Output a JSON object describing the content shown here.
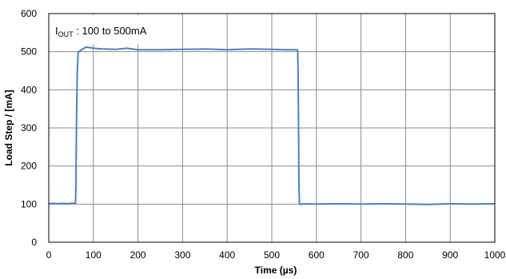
{
  "chart_data": {
    "type": "line",
    "title": "",
    "xlabel": "Time (µs)",
    "ylabel": "Load Step / [mA]",
    "xlim": [
      0,
      1000
    ],
    "ylim": [
      0,
      600
    ],
    "x_ticks": [
      0,
      100,
      200,
      300,
      400,
      500,
      600,
      700,
      800,
      900,
      1000
    ],
    "y_ticks": [
      0,
      100,
      200,
      300,
      400,
      500,
      600
    ],
    "grid": true,
    "legend": "none",
    "annotation": {
      "main": "I",
      "sub": "OUT",
      "rest": " :  100 to 500mA"
    },
    "series": [
      {
        "color": "#4f81bd",
        "x": [
          0,
          10,
          20,
          30,
          40,
          50,
          60,
          61,
          62,
          64,
          66,
          68,
          70,
          75,
          80,
          85,
          90,
          100,
          120,
          150,
          175,
          200,
          250,
          300,
          350,
          400,
          450,
          500,
          530,
          550,
          557,
          558,
          559,
          560,
          561,
          562,
          563,
          565,
          570,
          600,
          650,
          700,
          750,
          800,
          850,
          900,
          950,
          1000
        ],
        "y": [
          101,
          102,
          101,
          102,
          101,
          102,
          102,
          150,
          300,
          450,
          499,
          500,
          502,
          506,
          510,
          512,
          511,
          509,
          507,
          506,
          509,
          505,
          505,
          506,
          507,
          505,
          507,
          506,
          505,
          505,
          505,
          504,
          450,
          300,
          150,
          100,
          100,
          99,
          101,
          100,
          101,
          100,
          101,
          100,
          99,
          101,
          100,
          101
        ]
      }
    ]
  }
}
